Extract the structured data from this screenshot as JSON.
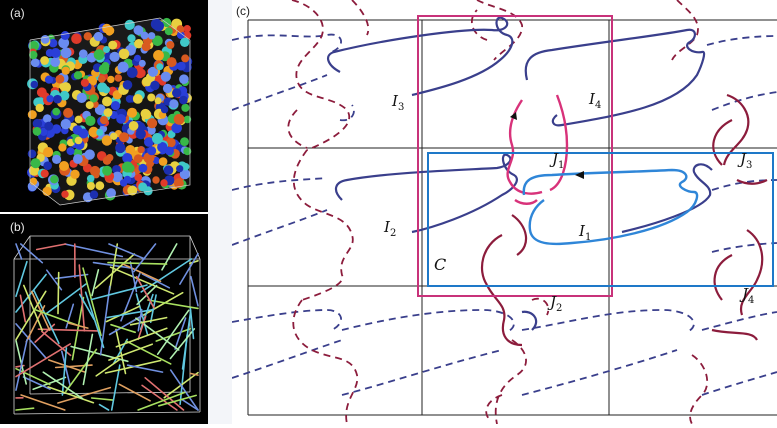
{
  "panels": {
    "a": {
      "label": "(a)"
    },
    "b": {
      "label": "(b)"
    },
    "c": {
      "label": "(c)"
    }
  },
  "diagram": {
    "labels": {
      "I1": {
        "main": "I",
        "sub": "1"
      },
      "I2": {
        "main": "I",
        "sub": "2"
      },
      "I3": {
        "main": "I",
        "sub": "3"
      },
      "I4": {
        "main": "I",
        "sub": "4"
      },
      "J1": {
        "main": "J",
        "sub": "1"
      },
      "J2": {
        "main": "J",
        "sub": "2"
      },
      "J3": {
        "main": "J",
        "sub": "3"
      },
      "J4": {
        "main": "J",
        "sub": "4"
      },
      "C": {
        "main": "C"
      }
    },
    "colors": {
      "navy_strand": "#3a3f8c",
      "maroon_strand": "#8c1c3c",
      "cell_C": "#1e78c8",
      "cell_outer": "#c8327a",
      "I1_strand": "#2f86d8",
      "J1_strand": "#d8327a",
      "grid": "#222222"
    }
  }
}
